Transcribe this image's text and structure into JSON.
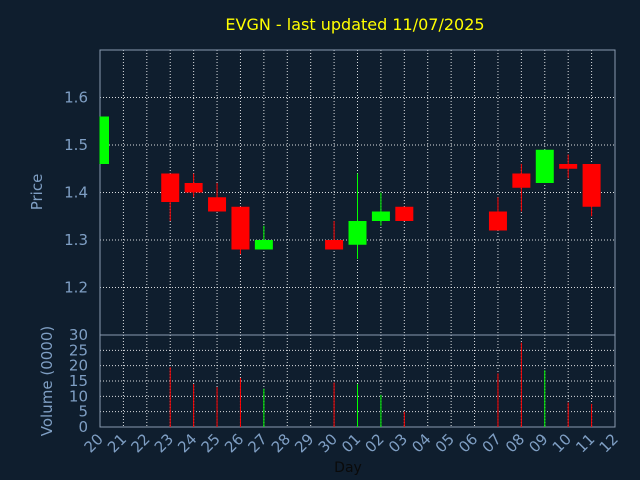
{
  "chart_data": [
    {
      "type": "candlestick",
      "title": "EVGN - last updated 11/07/2025",
      "ylabel": "Price",
      "ylim": [
        1.1,
        1.7
      ],
      "yticks": [
        "1.2",
        "1.3",
        "1.4",
        "1.5",
        "1.6"
      ],
      "grid": true,
      "colors": {
        "up": "#00ff00",
        "down": "#ff0000",
        "grid": "#ffffff",
        "axis_text": "#7f9fc4",
        "title": "#ffff00",
        "background": "#0f1e2e"
      },
      "categories": [
        "20",
        "21",
        "22",
        "23",
        "24",
        "25",
        "26",
        "27",
        "28",
        "29",
        "30",
        "01",
        "02",
        "03",
        "04",
        "05",
        "06",
        "07",
        "08",
        "09",
        "10",
        "11",
        "12"
      ],
      "candles": [
        {
          "day": "20",
          "open": 1.46,
          "close": 1.56,
          "high": 1.56,
          "low": 1.46
        },
        {
          "day": "23",
          "open": 1.44,
          "close": 1.38,
          "high": 1.44,
          "low": 1.34
        },
        {
          "day": "24",
          "open": 1.42,
          "close": 1.4,
          "high": 1.44,
          "low": 1.39
        },
        {
          "day": "25",
          "open": 1.39,
          "close": 1.36,
          "high": 1.42,
          "low": 1.36
        },
        {
          "day": "26",
          "open": 1.37,
          "close": 1.28,
          "high": 1.37,
          "low": 1.27
        },
        {
          "day": "27",
          "open": 1.28,
          "close": 1.3,
          "high": 1.33,
          "low": 1.28
        },
        {
          "day": "30",
          "open": 1.3,
          "close": 1.28,
          "high": 1.34,
          "low": 1.28
        },
        {
          "day": "01",
          "open": 1.29,
          "close": 1.34,
          "high": 1.44,
          "low": 1.26
        },
        {
          "day": "02",
          "open": 1.34,
          "close": 1.36,
          "high": 1.4,
          "low": 1.33
        },
        {
          "day": "03",
          "open": 1.37,
          "close": 1.34,
          "high": 1.37,
          "low": 1.34
        },
        {
          "day": "07",
          "open": 1.36,
          "close": 1.32,
          "high": 1.39,
          "low": 1.32
        },
        {
          "day": "08",
          "open": 1.44,
          "close": 1.41,
          "high": 1.46,
          "low": 1.36
        },
        {
          "day": "09",
          "open": 1.42,
          "close": 1.49,
          "high": 1.49,
          "low": 1.42
        },
        {
          "day": "10",
          "open": 1.46,
          "close": 1.45,
          "high": 1.48,
          "low": 1.43
        },
        {
          "day": "11",
          "open": 1.46,
          "close": 1.37,
          "high": 1.46,
          "low": 1.35
        }
      ]
    },
    {
      "type": "bar",
      "ylabel": "Volume (0000)",
      "xlabel": "Day",
      "ylim": [
        0,
        30
      ],
      "yticks": [
        "0",
        "5",
        "10",
        "15",
        "20",
        "25",
        "30"
      ],
      "grid": true,
      "categories": [
        "20",
        "21",
        "22",
        "23",
        "24",
        "25",
        "26",
        "27",
        "28",
        "29",
        "30",
        "01",
        "02",
        "03",
        "04",
        "05",
        "06",
        "07",
        "08",
        "09",
        "10",
        "11",
        "12"
      ],
      "bars": [
        {
          "day": "23",
          "value": 19.5,
          "direction": "down"
        },
        {
          "day": "24",
          "value": 14,
          "direction": "down"
        },
        {
          "day": "25",
          "value": 13,
          "direction": "down"
        },
        {
          "day": "26",
          "value": 16,
          "direction": "down"
        },
        {
          "day": "27",
          "value": 12.5,
          "direction": "up"
        },
        {
          "day": "30",
          "value": 14.5,
          "direction": "down"
        },
        {
          "day": "01",
          "value": 14,
          "direction": "up"
        },
        {
          "day": "02",
          "value": 10.5,
          "direction": "up"
        },
        {
          "day": "03",
          "value": 5,
          "direction": "down"
        },
        {
          "day": "07",
          "value": 17.5,
          "direction": "down"
        },
        {
          "day": "08",
          "value": 27.5,
          "direction": "down"
        },
        {
          "day": "09",
          "value": 18.5,
          "direction": "up"
        },
        {
          "day": "10",
          "value": 8,
          "direction": "down"
        },
        {
          "day": "11",
          "value": 7.5,
          "direction": "down"
        }
      ]
    }
  ]
}
